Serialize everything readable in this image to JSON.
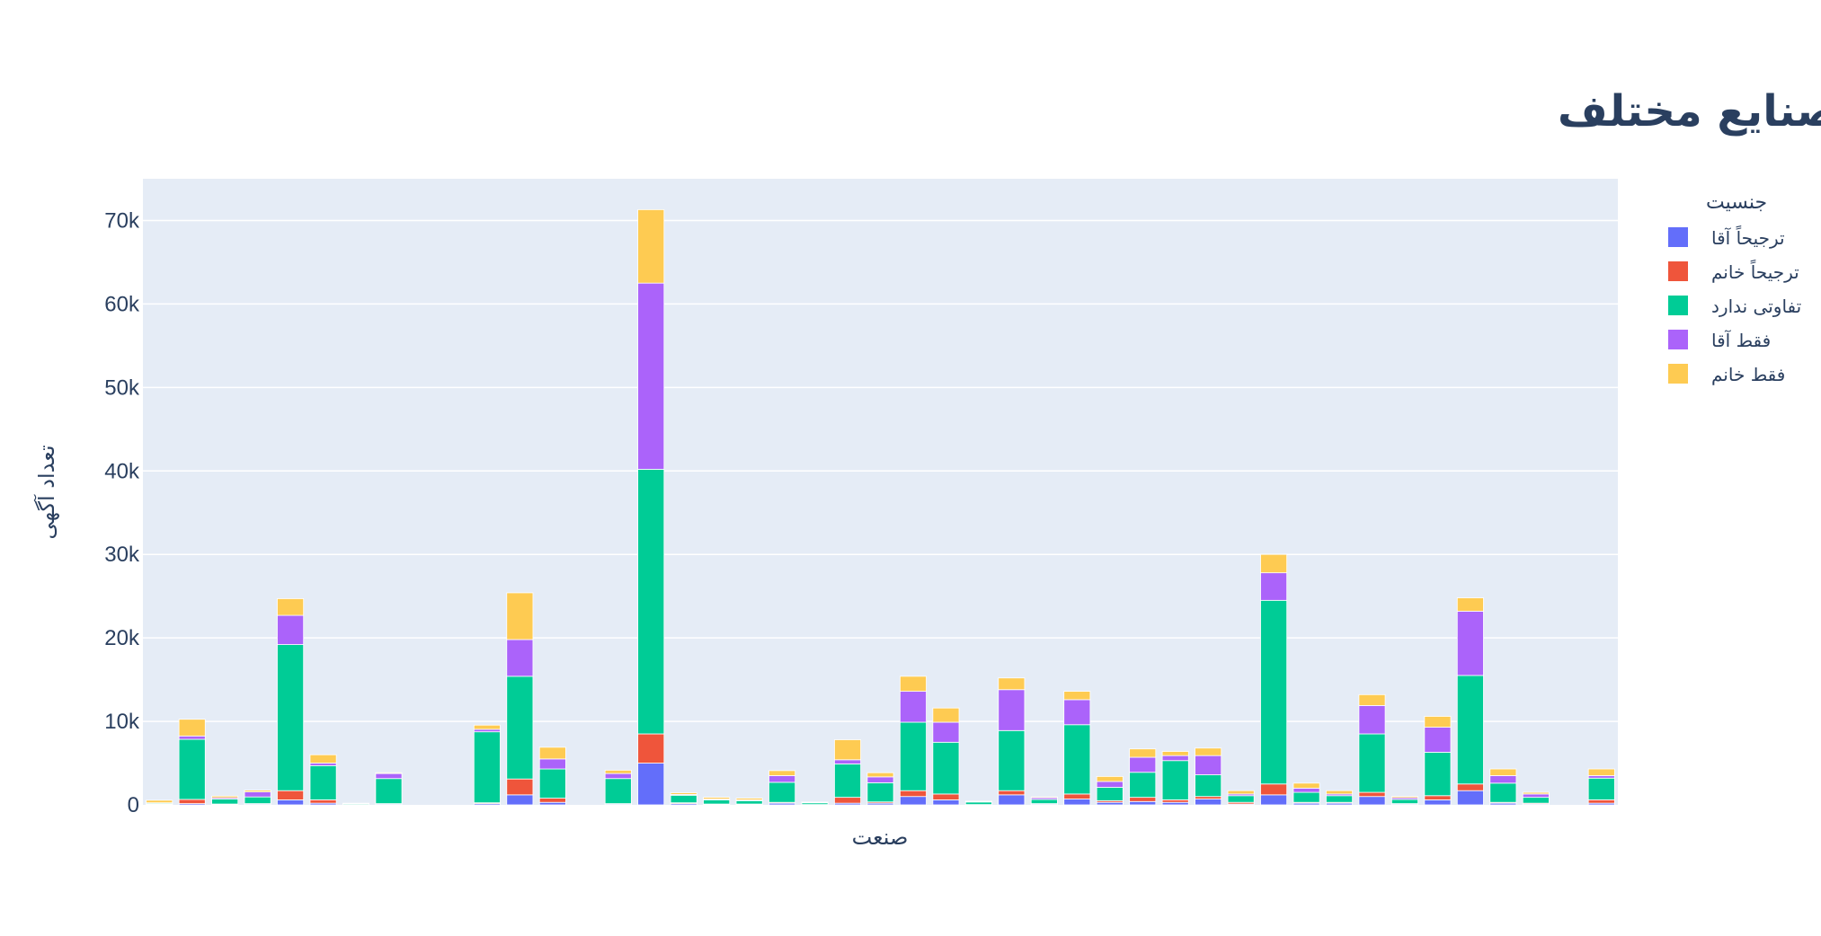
{
  "chart_data": {
    "type": "bar",
    "barmode": "stack",
    "title": "ترجیحات جنسیتی در صنایع مختلف",
    "xlabel": "صنعت",
    "ylabel": "تعداد آگهی",
    "ylim": [
      0,
      75000
    ],
    "yticks": [
      {
        "value": 0,
        "label": "0"
      },
      {
        "value": 10000,
        "label": "10k"
      },
      {
        "value": 20000,
        "label": "20k"
      },
      {
        "value": 30000,
        "label": "30k"
      },
      {
        "value": 40000,
        "label": "40k"
      },
      {
        "value": 50000,
        "label": "50k"
      },
      {
        "value": 60000,
        "label": "60k"
      },
      {
        "value": 70000,
        "label": "70k"
      }
    ],
    "grid": true,
    "legend_title": "جنسیت",
    "legend_position": "right",
    "series": [
      {
        "name": "ترجیحاً آقا",
        "color": "#636efa",
        "values": [
          50,
          150,
          50,
          100,
          600,
          200,
          30,
          100,
          0,
          0,
          150,
          1200,
          300,
          0,
          100,
          5000,
          150,
          50,
          50,
          200,
          20,
          200,
          200,
          1000,
          600,
          20,
          1200,
          100,
          700,
          300,
          400,
          300,
          700,
          100,
          1200,
          200,
          200,
          1000,
          100,
          600,
          1700,
          200,
          100,
          0,
          200
        ]
      },
      {
        "name": "ترجیحاً خانم",
        "color": "#ef553b",
        "values": [
          50,
          500,
          50,
          50,
          1100,
          400,
          20,
          50,
          0,
          0,
          100,
          1900,
          500,
          0,
          50,
          3500,
          100,
          50,
          50,
          100,
          20,
          700,
          150,
          700,
          700,
          20,
          500,
          50,
          600,
          200,
          500,
          300,
          300,
          200,
          1300,
          100,
          100,
          500,
          50,
          500,
          800,
          100,
          100,
          0,
          400
        ]
      },
      {
        "name": "تفاوتی ندارد",
        "color": "#00cc96",
        "values": [
          100,
          7200,
          600,
          800,
          17500,
          4100,
          100,
          3000,
          0,
          0,
          8500,
          12300,
          3500,
          0,
          3000,
          31700,
          900,
          500,
          400,
          2400,
          200,
          4000,
          2300,
          8200,
          6200,
          300,
          7200,
          500,
          8300,
          1600,
          3000,
          4700,
          2600,
          800,
          22000,
          1200,
          800,
          7000,
          500,
          5200,
          13000,
          2300,
          700,
          0,
          2600
        ]
      },
      {
        "name": "فقط آقا",
        "color": "#ab63fa",
        "values": [
          50,
          400,
          150,
          600,
          3500,
          300,
          20,
          600,
          0,
          0,
          300,
          4400,
          1200,
          0,
          600,
          22300,
          100,
          100,
          100,
          800,
          50,
          500,
          700,
          3700,
          2400,
          50,
          4900,
          200,
          3000,
          700,
          1800,
          600,
          2300,
          200,
          3300,
          500,
          200,
          3400,
          200,
          3000,
          7700,
          900,
          400,
          0,
          300
        ]
      },
      {
        "name": "فقط خانم",
        "color": "#fecb52",
        "values": [
          300,
          2000,
          200,
          200,
          2000,
          1000,
          30,
          100,
          0,
          0,
          500,
          5600,
          1400,
          0,
          400,
          8800,
          200,
          200,
          200,
          600,
          50,
          2400,
          500,
          1800,
          1700,
          50,
          1400,
          100,
          1000,
          600,
          1000,
          500,
          900,
          400,
          2200,
          600,
          400,
          1300,
          150,
          1300,
          1600,
          800,
          200,
          0,
          800
        ]
      }
    ]
  }
}
